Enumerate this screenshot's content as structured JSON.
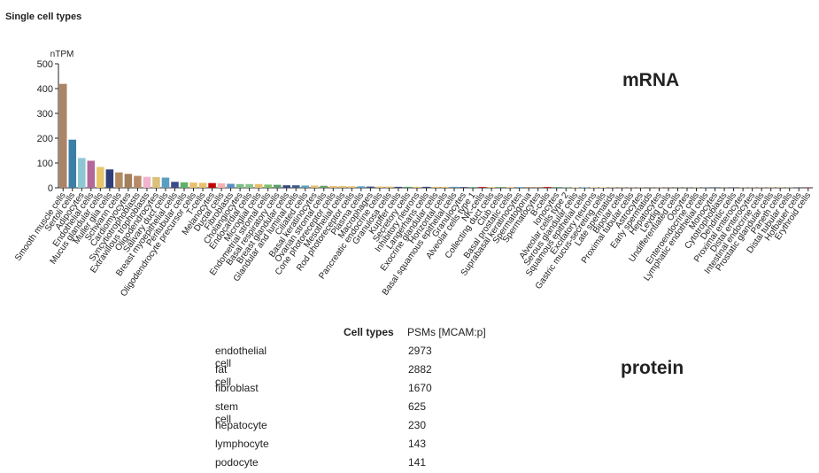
{
  "section_title": "Single cell types",
  "mrna_label": "mRNA",
  "protein_label": "protein",
  "chart_data": [
    {
      "type": "bar",
      "ylabel": "nTPM",
      "ylim": [
        0,
        500
      ],
      "yticks": [
        0,
        100,
        200,
        300,
        400,
        500
      ],
      "grid": false,
      "categories": [
        "Smooth muscle cells",
        "Sertoli cells",
        "Adipocytes",
        "Endothelial cells",
        "Mucus glandular cells",
        "Muller glia cells",
        "Schwann cells",
        "Cardiomyocytes",
        "Syncytiotrophoblasts",
        "Extravillous trophoblasts",
        "Oligodendrocytes",
        "Salivary duct cells",
        "Breast myoepithelial cells",
        "Peritubular cells",
        "Oligodendrocyte precursor cells",
        "T-cells",
        "Melanocytes",
        "Ductal cells",
        "Fibroblasts",
        "Cholangiocytes",
        "Endocardial cells",
        "Microglial cells",
        "Endometrial stromal cells",
        "Basal respiratory cells",
        "Breast glandular cells",
        "Glandular and luminal cells",
        "Ciliated cells",
        "Basal keratinocytes",
        "Ovarian stromal cells",
        "Cone photoreceptor cells",
        "Mesothelial cells",
        "Rod photoreceptor cells",
        "Plasma cells",
        "Macrophages",
        "Pancreatic endocrine cells",
        "Granulosa cells",
        "Kupffer cells",
        "Secretory cells",
        "Inhibitory neurons",
        "Langerhans cells",
        "Exocrine glandular cells",
        "Horizontal cells",
        "Basal squamous epithelial cells",
        "Granulocytes",
        "Alveolar cells type 1",
        "NK-cells",
        "Collecting duct cells",
        "Club cells",
        "Basal prostatic cells",
        "Suprabasal keratinocytes",
        "Spermatogonia",
        "Spermatocytes",
        "B-cells",
        "Ionocytes",
        "Alveolar cells type 2",
        "Serous glandular cells",
        "Squamous epithelial cells",
        "Excitatory neurons",
        "Gastric mucus-secreting cells",
        "Late spermatids",
        "Bipolar cells",
        "Proximal tubular cells",
        "Astrocytes",
        "Early spermatids",
        "Hepatocytes",
        "Leydig cells",
        "Undifferentiated cells",
        "Oocytes",
        "Enteroendocrine cells",
        "Lymphatic endothelial cells",
        "Monocytes",
        "Cytotrophoblasts",
        "Dendritic cells",
        "Proximal enterocytes",
        "Distal enterocytes",
        "Intestinal endocrine cells",
        "Prostatic glandular cells",
        "Paneth cells",
        "Distal tubular cells",
        "Hofbauer cells",
        "Erythroid cells"
      ],
      "values": [
        419,
        194,
        120,
        109,
        84,
        74,
        62,
        56,
        48,
        44,
        43,
        41,
        24,
        22,
        21,
        20,
        19,
        18,
        16,
        15,
        15,
        15,
        13,
        12,
        10,
        10,
        9,
        9,
        8,
        7,
        7,
        6,
        6,
        5,
        5,
        5,
        4,
        4,
        4,
        4,
        4,
        4,
        4,
        3,
        3,
        3,
        3,
        3,
        3,
        3,
        3,
        3,
        3,
        3,
        2,
        2,
        2,
        2,
        2,
        2,
        1,
        1,
        1,
        1,
        1,
        1,
        1,
        1,
        1,
        1,
        1,
        1,
        1,
        1,
        1,
        1,
        1,
        1,
        1,
        1,
        1
      ],
      "colors": [
        "#ab8466",
        "#3c7fa6",
        "#8ec7d4",
        "#b3679b",
        "#e6c76b",
        "#2e3f7a",
        "#b38b63",
        "#a3805c",
        "#b88a67",
        "#f2b4cc",
        "#dcc07a",
        "#5a9ec0",
        "#3b4a8a",
        "#5fb26a",
        "#e8c06a",
        "#e8c06a",
        "#c00000",
        "#f5b1b1",
        "#5a8fc0",
        "#7abf87",
        "#8ac48c",
        "#e8c06a",
        "#7fbf6a",
        "#5aa06a",
        "#37447f",
        "#3d5a8a",
        "#5aa0c0",
        "#e0c070",
        "#6aa060",
        "#e8c06a",
        "#e8c06a",
        "#e8c06a",
        "#5a9ec0",
        "#3b4a8a",
        "#e8c06a",
        "#e8c06a",
        "#3b4a8a",
        "#5aa06a",
        "#e8c06a",
        "#3b4a8a",
        "#e8c06a",
        "#e8c06a",
        "#5a9ec0",
        "#3b4a8a",
        "#5aa06a",
        "#c00000",
        "#e8c06a",
        "#5aa06a",
        "#e8c06a",
        "#5a9ec0",
        "#b38b63",
        "#b38b63",
        "#c00000",
        "#5aa06a",
        "#5aa06a",
        "#e8c06a",
        "#5a9ec0",
        "#e8c06a",
        "#e8c06a",
        "#b38b63",
        "#e8c06a",
        "#e8c06a",
        "#e8c06a",
        "#b38b63",
        "#e8c06a",
        "#b38b63",
        "#5aa06a",
        "#b38b63",
        "#e8c06a",
        "#5a9ec0",
        "#3b4a8a",
        "#b88a67",
        "#3b4a8a",
        "#e8c06a",
        "#e8c06a",
        "#e8c06a",
        "#e8c06a",
        "#e8c06a",
        "#e8c06a",
        "#3b4a8a",
        "#c00000"
      ]
    },
    {
      "type": "bar",
      "orientation": "horizontal",
      "column_headers": [
        "Cell types",
        "PSMs [MCAM:p]"
      ],
      "categories": [
        "endothelial cell",
        "fat cell",
        "fibroblast",
        "stem cell",
        "hepatocyte",
        "lymphocyte",
        "podocyte"
      ],
      "values": [
        2973,
        2882,
        1670,
        625,
        230,
        143,
        141
      ],
      "bar_color": "#800080",
      "link_color": "#2a2aff"
    }
  ]
}
